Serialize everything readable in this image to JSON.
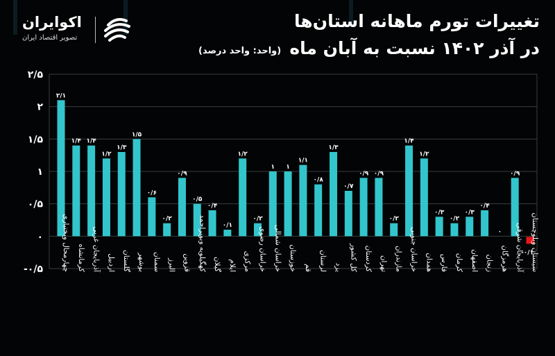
{
  "header": {
    "title_line1": "تغییرات تورم ماهانه استان‌ها",
    "title_line2": "در آذر ۱۴۰۲ نسبت به آبان ماه",
    "unit_note": "(واحد: واحد درصد)"
  },
  "logo": {
    "name": "اکوایران",
    "tagline": "تصویر اقتصاد ایران",
    "icon": "ecoiran-swirl-icon"
  },
  "colors": {
    "background": "#030405",
    "bar_positive": "#33c5cc",
    "bar_negative": "#e8161a",
    "grid": "#3a3d40",
    "text": "#ffffff"
  },
  "chart_data": {
    "type": "bar",
    "title": "تغییرات تورم ماهانه استان‌ها در آذر ۱۴۰۲ نسبت به آبان ماه",
    "xlabel": "",
    "ylabel": "",
    "ylim": [
      -0.5,
      2.5
    ],
    "grid": true,
    "legend": "none",
    "yticks": [
      2.5,
      2,
      1.5,
      1,
      0.5,
      0,
      -0.5
    ],
    "ytick_labels": [
      "۲/۵",
      "۲",
      "۱/۵",
      "۱",
      "۰/۵",
      "۰",
      "-۰/۵"
    ],
    "categories": [
      "چهارمحال وبختیاری",
      "کرمانشاه",
      "آذربایجان غربی",
      "اردبیل",
      "گلستان",
      "بوشهر",
      "سمنان",
      "البرز",
      "قزوین",
      "کهگیلویه وبویراحمد",
      "گیلان",
      "ایلام",
      "مرکزی",
      "خراسان رضوی",
      "خراسان شمالی",
      "خوزستان",
      "قم",
      "لرستان",
      "یزد",
      "کل کشور",
      "کردستان",
      "تهران",
      "مازندران",
      "خراسان جنوبی",
      "همدان",
      "فارس",
      "کرمان",
      "اصفهان",
      "زنجان",
      "هرمزگان",
      "آذربایجان شرقی",
      "سیستان وبلوچستان"
    ],
    "values": [
      2.1,
      1.4,
      1.4,
      1.2,
      1.3,
      1.5,
      0.6,
      0.2,
      0.9,
      0.5,
      0.4,
      0.1,
      1.2,
      0.2,
      1,
      1,
      1.1,
      0.8,
      1.3,
      0.7,
      0.9,
      0.9,
      0.2,
      1.4,
      1.2,
      0.3,
      0.2,
      0.3,
      0.4,
      0,
      0.9,
      -0.1
    ],
    "value_labels": [
      "۲/۱",
      "۱/۴",
      "۱/۴",
      "۱/۲",
      "۱/۳",
      "۱/۵",
      "۰/۶",
      "۰/۲",
      "۰/۹",
      "۰/۵",
      "۰/۴",
      "۰/۱",
      "۱/۲",
      "۰/۲",
      "۱",
      "۱",
      "۱/۱",
      "۰/۸",
      "۱/۳",
      "۰/۷",
      "۰/۹",
      "۰/۹",
      "۰/۲",
      "۱/۴",
      "۱/۲",
      "۰/۳",
      "۰/۲",
      "۰/۳",
      "۰/۴",
      "۰",
      "۰/۹",
      "-۰/۱"
    ]
  }
}
